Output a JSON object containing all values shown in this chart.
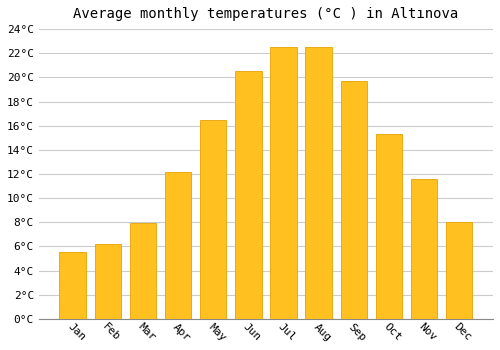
{
  "title": "Average monthly temperatures (°C ) in Altınova",
  "months": [
    "Jan",
    "Feb",
    "Mar",
    "Apr",
    "May",
    "Jun",
    "Jul",
    "Aug",
    "Sep",
    "Oct",
    "Nov",
    "Dec"
  ],
  "temperatures": [
    5.5,
    6.2,
    7.9,
    12.2,
    16.5,
    20.5,
    22.5,
    22.5,
    19.7,
    15.3,
    11.6,
    8.0
  ],
  "bar_color": "#FFC020",
  "bar_edge_color": "#E8A000",
  "background_color": "#FFFFFF",
  "plot_bg_color": "#FFFFFF",
  "grid_color": "#CCCCCC",
  "ylim": [
    0,
    24
  ],
  "ytick_step": 2,
  "title_fontsize": 10,
  "tick_fontsize": 8,
  "font_family": "monospace",
  "bar_width": 0.75,
  "xlabel_rotation": -45,
  "xlabel_ha": "left"
}
